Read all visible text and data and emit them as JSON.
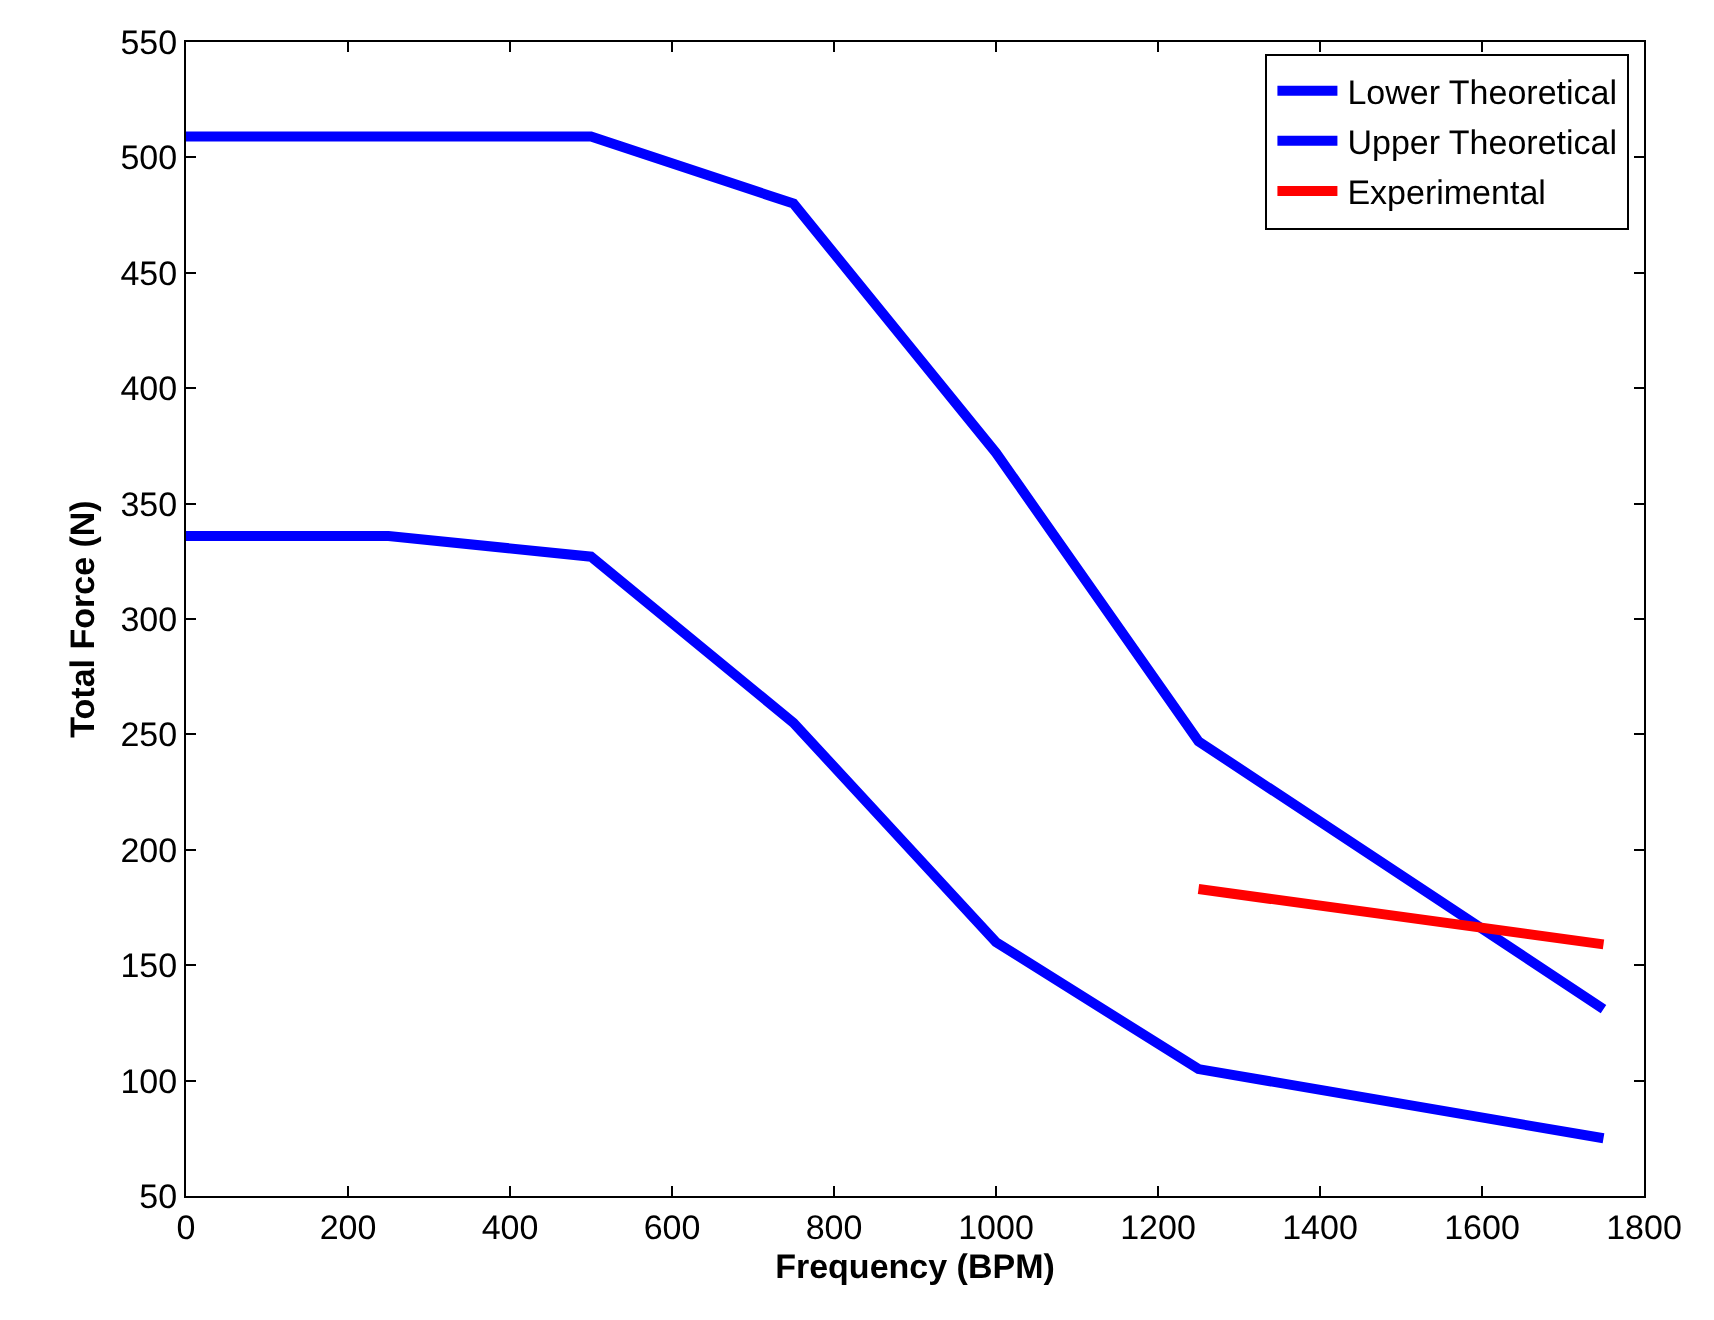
{
  "chart_data": {
    "type": "line",
    "xlabel": "Frequency (BPM)",
    "ylabel": "Total Force (N)",
    "xlim": [
      0,
      1800
    ],
    "xticks": [
      0,
      200,
      400,
      600,
      800,
      1000,
      1200,
      1400,
      1600,
      1800
    ],
    "ylim": [
      50,
      550
    ],
    "yticks": [
      50,
      100,
      150,
      200,
      250,
      300,
      350,
      400,
      450,
      500,
      550
    ],
    "legend": "top right",
    "marker": "none",
    "line_style": "solid",
    "series": [
      {
        "name": "Lower Theoretical",
        "color": "#0000ff",
        "x": [
          0,
          250,
          500,
          750,
          1000,
          1250,
          1750
        ],
        "values": [
          336,
          336,
          327,
          255,
          160,
          105,
          75
        ]
      },
      {
        "name": "Upper Theoretical",
        "color": "#0000ff",
        "x": [
          0,
          250,
          500,
          750,
          1000,
          1250,
          1750
        ],
        "values": [
          509,
          509,
          509,
          480,
          372,
          247,
          131
        ]
      },
      {
        "name": "Experimental",
        "color": "#ff0000",
        "x": [
          1250,
          1750
        ],
        "values": [
          183,
          159
        ]
      }
    ]
  }
}
